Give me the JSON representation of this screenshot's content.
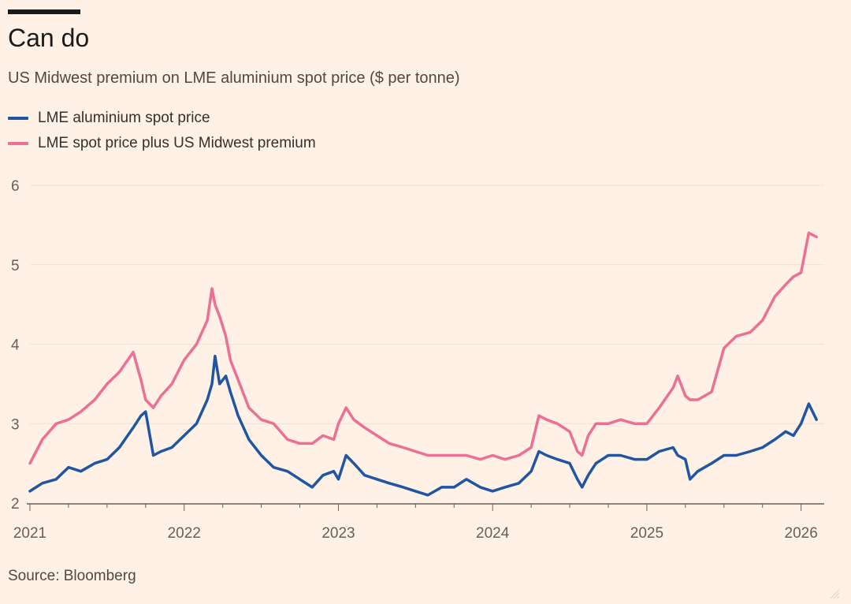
{
  "header": {
    "title": "Can do",
    "subtitle": "US Midwest premium on LME aluminium spot price ($ per tonne)"
  },
  "footer": {
    "source": "Source: Bloomberg"
  },
  "colors": {
    "blue": "#1f55a3",
    "pink": "#ec6f95",
    "grid": "#ebe1d7",
    "background": "#fff1e5"
  },
  "chart_data": {
    "type": "line",
    "title": "Can do",
    "subtitle": "US Midwest premium on LME aluminium spot price ($ per tonne)",
    "xlabel": "",
    "ylabel": "",
    "xlim": [
      2021.0,
      2026.15
    ],
    "ylim": [
      2,
      6
    ],
    "y_ticks": [
      "2",
      "3",
      "4",
      "5",
      "6"
    ],
    "x_ticks": [
      "2021",
      "2022",
      "2023",
      "2024",
      "2025",
      "2026"
    ],
    "legend_position": "top-left",
    "series": [
      {
        "name": "LME aluminium spot price",
        "color": "#1f55a3",
        "x": [
          2021.0,
          2021.08,
          2021.17,
          2021.25,
          2021.33,
          2021.42,
          2021.5,
          2021.58,
          2021.67,
          2021.72,
          2021.75,
          2021.8,
          2021.85,
          2021.92,
          2022.0,
          2022.08,
          2022.15,
          2022.18,
          2022.2,
          2022.23,
          2022.27,
          2022.3,
          2022.35,
          2022.42,
          2022.5,
          2022.58,
          2022.67,
          2022.75,
          2022.83,
          2022.9,
          2022.97,
          2023.0,
          2023.05,
          2023.1,
          2023.17,
          2023.25,
          2023.33,
          2023.42,
          2023.5,
          2023.58,
          2023.67,
          2023.75,
          2023.83,
          2023.92,
          2024.0,
          2024.08,
          2024.17,
          2024.25,
          2024.3,
          2024.35,
          2024.42,
          2024.5,
          2024.55,
          2024.58,
          2024.62,
          2024.67,
          2024.75,
          2024.83,
          2024.92,
          2025.0,
          2025.08,
          2025.17,
          2025.2,
          2025.25,
          2025.28,
          2025.33,
          2025.42,
          2025.5,
          2025.58,
          2025.67,
          2025.75,
          2025.83,
          2025.9,
          2025.95,
          2026.0,
          2026.05,
          2026.1
        ],
        "values": [
          2.15,
          2.25,
          2.3,
          2.45,
          2.4,
          2.5,
          2.55,
          2.7,
          2.95,
          3.1,
          3.15,
          2.6,
          2.65,
          2.7,
          2.85,
          3.0,
          3.3,
          3.5,
          3.85,
          3.5,
          3.6,
          3.4,
          3.1,
          2.8,
          2.6,
          2.45,
          2.4,
          2.3,
          2.2,
          2.35,
          2.4,
          2.3,
          2.6,
          2.5,
          2.35,
          2.3,
          2.25,
          2.2,
          2.15,
          2.1,
          2.2,
          2.2,
          2.3,
          2.2,
          2.15,
          2.2,
          2.25,
          2.4,
          2.65,
          2.6,
          2.55,
          2.5,
          2.3,
          2.2,
          2.35,
          2.5,
          2.6,
          2.6,
          2.55,
          2.55,
          2.65,
          2.7,
          2.6,
          2.55,
          2.3,
          2.4,
          2.5,
          2.6,
          2.6,
          2.65,
          2.7,
          2.8,
          2.9,
          2.85,
          3.0,
          3.25,
          3.05
        ]
      },
      {
        "name": "LME spot price plus US Midwest premium",
        "color": "#ec6f95",
        "x": [
          2021.0,
          2021.08,
          2021.17,
          2021.25,
          2021.33,
          2021.42,
          2021.5,
          2021.58,
          2021.67,
          2021.72,
          2021.75,
          2021.8,
          2021.85,
          2021.92,
          2022.0,
          2022.08,
          2022.15,
          2022.18,
          2022.2,
          2022.23,
          2022.27,
          2022.3,
          2022.35,
          2022.42,
          2022.5,
          2022.58,
          2022.67,
          2022.75,
          2022.83,
          2022.9,
          2022.97,
          2023.0,
          2023.05,
          2023.1,
          2023.17,
          2023.25,
          2023.33,
          2023.42,
          2023.5,
          2023.58,
          2023.67,
          2023.75,
          2023.83,
          2023.92,
          2024.0,
          2024.08,
          2024.17,
          2024.25,
          2024.3,
          2024.35,
          2024.42,
          2024.5,
          2024.55,
          2024.58,
          2024.62,
          2024.67,
          2024.75,
          2024.83,
          2024.92,
          2025.0,
          2025.08,
          2025.17,
          2025.2,
          2025.25,
          2025.28,
          2025.33,
          2025.42,
          2025.5,
          2025.58,
          2025.67,
          2025.75,
          2025.83,
          2025.9,
          2025.95,
          2026.0,
          2026.05,
          2026.1
        ],
        "values": [
          2.5,
          2.8,
          3.0,
          3.05,
          3.15,
          3.3,
          3.5,
          3.65,
          3.9,
          3.55,
          3.3,
          3.2,
          3.35,
          3.5,
          3.8,
          4.0,
          4.3,
          4.7,
          4.5,
          4.35,
          4.1,
          3.8,
          3.55,
          3.2,
          3.05,
          3.0,
          2.8,
          2.75,
          2.75,
          2.85,
          2.8,
          3.0,
          3.2,
          3.05,
          2.95,
          2.85,
          2.75,
          2.7,
          2.65,
          2.6,
          2.6,
          2.6,
          2.6,
          2.55,
          2.6,
          2.55,
          2.6,
          2.7,
          3.1,
          3.05,
          3.0,
          2.9,
          2.65,
          2.6,
          2.85,
          3.0,
          3.0,
          3.05,
          3.0,
          3.0,
          3.2,
          3.45,
          3.6,
          3.35,
          3.3,
          3.3,
          3.4,
          3.95,
          4.1,
          4.15,
          4.3,
          4.6,
          4.75,
          4.85,
          4.9,
          5.4,
          5.35
        ]
      }
    ]
  }
}
